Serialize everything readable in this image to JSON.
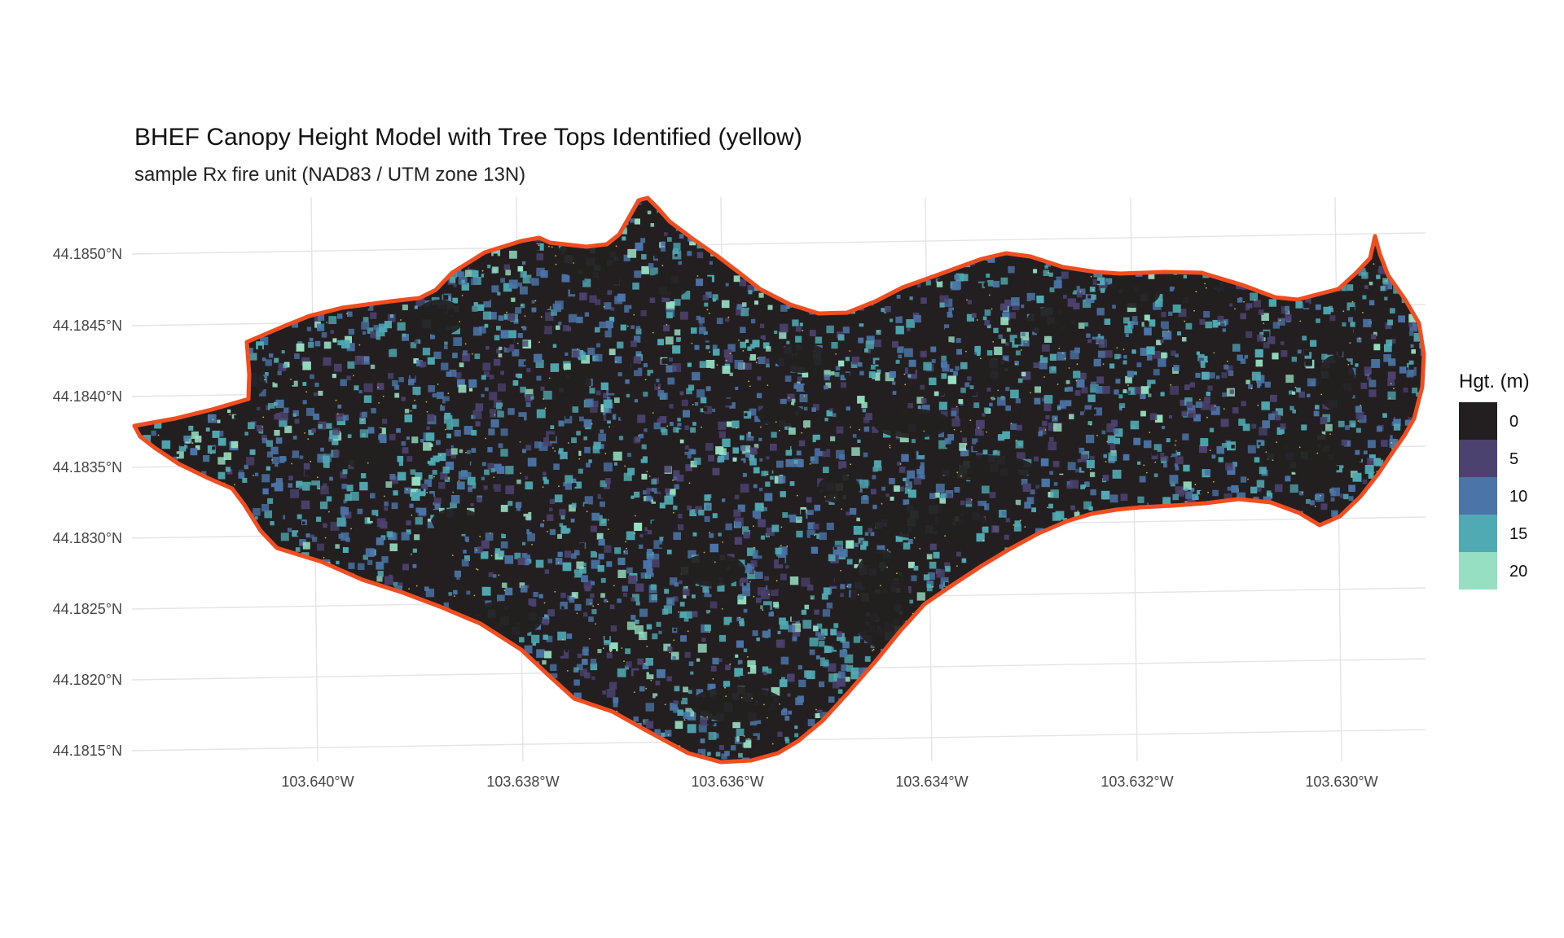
{
  "chart_data": {
    "type": "heatmap",
    "title": "BHEF Canopy Height Model with Tree Tops Identified (yellow)",
    "subtitle": "sample Rx fire unit (NAD83 / UTM zone 13N)",
    "x_ticks": [
      "103.640°W",
      "103.638°W",
      "103.636°W",
      "103.634°W",
      "103.632°W",
      "103.630°W"
    ],
    "y_ticks": [
      "44.1850°N",
      "44.1845°N",
      "44.1840°N",
      "44.1835°N",
      "44.1830°N",
      "44.1825°N",
      "44.1820°N",
      "44.1815°N"
    ],
    "xlim": [
      -103.6418,
      -103.6292
    ],
    "ylim": [
      44.18145,
      44.18535
    ],
    "grid": true,
    "legend": {
      "title": "Hgt. (m)",
      "placement": "right",
      "entries": [
        {
          "label": "0",
          "value": 0,
          "color": "#231f20"
        },
        {
          "label": "5",
          "value": 5,
          "color": "#4c4270"
        },
        {
          "label": "10",
          "value": 10,
          "color": "#4b75a8"
        },
        {
          "label": "15",
          "value": 15,
          "color": "#50aab3"
        },
        {
          "label": "20",
          "value": 20,
          "color": "#97dfc2"
        }
      ]
    },
    "boundary_color": "#f24d1f",
    "tree_top_color": "#e8d046"
  }
}
